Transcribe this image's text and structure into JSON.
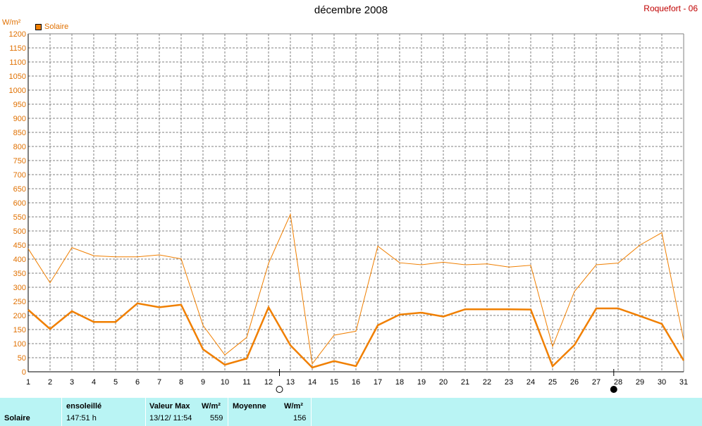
{
  "title": "décembre 2008",
  "station": "Roquefort - 06",
  "unit": "W/m²",
  "legend": "Solaire",
  "colors": {
    "series": "#f07f00",
    "axis_text": "#e07000",
    "station": "#c00000",
    "summary_bg": "#b9f4f4"
  },
  "moon_icons": [
    "full-moon-icon",
    "new-moon-icon"
  ],
  "chart_data": {
    "type": "line",
    "x": [
      1,
      2,
      3,
      4,
      5,
      6,
      7,
      8,
      9,
      10,
      11,
      12,
      13,
      14,
      15,
      16,
      17,
      18,
      19,
      20,
      21,
      22,
      23,
      24,
      25,
      26,
      27,
      28,
      29,
      30,
      31
    ],
    "xlim": [
      1,
      31
    ],
    "ylim": [
      0,
      1200
    ],
    "yticks": [
      0,
      50,
      100,
      150,
      200,
      250,
      300,
      350,
      400,
      450,
      500,
      550,
      600,
      650,
      700,
      750,
      800,
      850,
      900,
      950,
      1000,
      1050,
      1100,
      1150,
      1200
    ],
    "ylabel": "W/m²",
    "grid": true,
    "legend_position": "top-left",
    "series": [
      {
        "name": "Solaire",
        "values": [
          437,
          316,
          441,
          412,
          408,
          408,
          415,
          401,
          165,
          60,
          122,
          385,
          559,
          28,
          130,
          144,
          446,
          387,
          380,
          389,
          380,
          383,
          372,
          378,
          90,
          285,
          380,
          386,
          450,
          494,
          113
        ]
      },
      {
        "name": "Solaire",
        "values": [
          220,
          152,
          215,
          177,
          177,
          243,
          229,
          238,
          80,
          25,
          47,
          229,
          94,
          15,
          38,
          20,
          165,
          203,
          210,
          196,
          222,
          222,
          222,
          221,
          20,
          95,
          225,
          225,
          198,
          170,
          40
        ]
      }
    ],
    "moon_phases": [
      {
        "day": 12.5,
        "phase": "full"
      },
      {
        "day": 27.8,
        "phase": "new"
      }
    ]
  },
  "summary": {
    "row_label": "Solaire",
    "sunshine_header": "ensoleillé",
    "sunshine_value": "147:51 h",
    "max_header": "Valeur Max",
    "max_unit": "W/m²",
    "max_date": "13/12/  11:54",
    "max_value": "559",
    "avg_header": "Moyenne",
    "avg_unit": "W/m²",
    "avg_value": "156"
  }
}
